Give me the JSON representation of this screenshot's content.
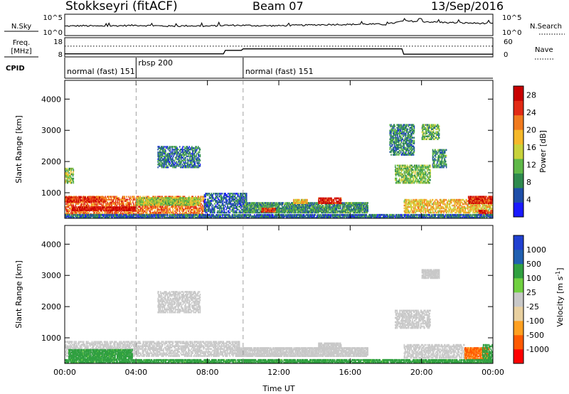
{
  "header": {
    "station": "Stokkseyri (fitACF)",
    "beam": "Beam 07",
    "date": "13/Sep/2016"
  },
  "colors": {
    "power_scale": [
      "#1a1aff",
      "#1e4ea8",
      "#2e8a4e",
      "#5fb848",
      "#c8d23a",
      "#f5b82a",
      "#f07a1e",
      "#e22a14",
      "#c80000"
    ],
    "velocity_scale": [
      "#ff0000",
      "#ff5a00",
      "#ffa020",
      "#e8d0a0",
      "#c8c8c8",
      "#70d040",
      "#30a040",
      "#2060b0",
      "#2040d0"
    ],
    "ground_scatter": "#c8c8c8"
  },
  "chart_data": [
    {
      "type": "line",
      "panel": "noise",
      "labels_left": {
        "name": "N.Sky",
        "top_tick": "10^5",
        "bottom_tick": "10^0"
      },
      "labels_right": {
        "name": "N.Search",
        "top_tick": "10^5",
        "bottom_tick": "10^0"
      },
      "x": [
        0,
        1,
        2,
        3,
        4,
        5,
        6,
        7,
        8,
        9,
        10,
        11,
        12,
        13,
        14,
        15,
        16,
        17,
        18,
        19,
        20,
        21,
        22,
        23,
        24
      ],
      "series": [
        {
          "style": "solid",
          "values": [
            2.2,
            2.3,
            2.2,
            2.3,
            2.4,
            2.3,
            2.2,
            2.3,
            2.2,
            2.4,
            2.4,
            2.3,
            2.3,
            2.4,
            2.5,
            2.6,
            2.6,
            2.7,
            2.6,
            3.4,
            3.3,
            3.1,
            3.0,
            2.9,
            2.8
          ]
        }
      ]
    },
    {
      "type": "line",
      "panel": "frequency",
      "labels_left": {
        "name_top": "Freq.",
        "name_bottom": "[MHz]",
        "top_tick": "18",
        "bottom_tick": "8"
      },
      "labels_right": {
        "name": "Nave",
        "top_tick": "60",
        "bottom_tick": "0"
      },
      "x": [
        0,
        1,
        2,
        3,
        4,
        5,
        6,
        7,
        8,
        8.9,
        9.0,
        9.9,
        10.0,
        11,
        12,
        13,
        14,
        15,
        16,
        17,
        18,
        18.9,
        19.0,
        20,
        21,
        22,
        23,
        24
      ],
      "series": [
        {
          "style": "solid",
          "values": [
            9.6,
            9.6,
            9.6,
            9.6,
            9.6,
            9.6,
            9.6,
            9.6,
            9.6,
            9.6,
            11.4,
            11.4,
            12.2,
            12.2,
            12.2,
            12.2,
            12.2,
            12.2,
            12.2,
            12.2,
            12.2,
            12.2,
            9.4,
            9.4,
            9.4,
            9.4,
            9.4,
            9.4
          ]
        },
        {
          "style": "dotted",
          "values": [
            13.6,
            13.6,
            13.6,
            13.6,
            13.6,
            13.6,
            13.6,
            13.6,
            13.6,
            13.6,
            13.6,
            13.6,
            13.6,
            13.6,
            13.6,
            13.6,
            13.6,
            13.6,
            13.6,
            13.6,
            13.6,
            13.6,
            13.6,
            13.6,
            13.6,
            13.6,
            13.6,
            13.6
          ]
        }
      ]
    },
    {
      "type": "table",
      "panel": "cpid",
      "label": "CPID",
      "segments": [
        {
          "start": 0,
          "end": 4.0,
          "text": "normal (fast) 151"
        },
        {
          "start": 4.0,
          "end": 10.0,
          "text": "rbsp 200"
        },
        {
          "start": 10.0,
          "end": 24,
          "text": "normal (fast) 151"
        }
      ]
    },
    {
      "type": "heatmap",
      "panel": "power",
      "ylabel": "Slant Range [km]",
      "xlim": [
        0,
        24
      ],
      "ylim": [
        180,
        4600
      ],
      "yticks": [
        1000,
        2000,
        3000,
        4000
      ],
      "colorbar": {
        "label": "Power [dB]",
        "ticks": [
          "4",
          "8",
          "12",
          "16",
          "20",
          "24",
          "28"
        ],
        "range": [
          0,
          30
        ]
      },
      "regions": [
        {
          "t0": 0.0,
          "t1": 7.8,
          "r0": 300,
          "r1": 900,
          "value": 22
        },
        {
          "t0": 0.4,
          "t1": 4.0,
          "r0": 420,
          "r1": 560,
          "value": 28
        },
        {
          "t0": 0.0,
          "t1": 2.2,
          "r0": 700,
          "r1": 880,
          "value": 26
        },
        {
          "t0": 4.0,
          "t1": 7.6,
          "r0": 600,
          "r1": 860,
          "value": 14
        },
        {
          "t0": 7.8,
          "t1": 10.2,
          "r0": 350,
          "r1": 1000,
          "value": 6
        },
        {
          "t0": 10.0,
          "t1": 17.0,
          "r0": 350,
          "r1": 700,
          "value": 9
        },
        {
          "t0": 14.2,
          "t1": 15.5,
          "r0": 650,
          "r1": 850,
          "value": 27
        },
        {
          "t0": 12.8,
          "t1": 13.6,
          "r0": 650,
          "r1": 800,
          "value": 18
        },
        {
          "t0": 11.0,
          "t1": 11.8,
          "r0": 380,
          "r1": 520,
          "value": 25
        },
        {
          "t0": 5.2,
          "t1": 7.6,
          "r0": 1800,
          "r1": 2500,
          "value": 7
        },
        {
          "t0": 0.0,
          "t1": 0.5,
          "r0": 1300,
          "r1": 1800,
          "value": 13
        },
        {
          "t0": 18.5,
          "t1": 20.5,
          "r0": 1300,
          "r1": 1900,
          "value": 12
        },
        {
          "t0": 18.2,
          "t1": 19.6,
          "r0": 2200,
          "r1": 3200,
          "value": 8
        },
        {
          "t0": 20.0,
          "t1": 21.0,
          "r0": 2700,
          "r1": 3200,
          "value": 11
        },
        {
          "t0": 20.6,
          "t1": 21.4,
          "r0": 1800,
          "r1": 2400,
          "value": 9
        },
        {
          "t0": 19.0,
          "t1": 24.0,
          "r0": 350,
          "r1": 800,
          "value": 18
        },
        {
          "t0": 22.6,
          "t1": 24.0,
          "r0": 650,
          "r1": 900,
          "value": 26
        },
        {
          "t0": 23.2,
          "t1": 24.0,
          "r0": 300,
          "r1": 450,
          "value": 26
        },
        {
          "t0": 0.0,
          "t1": 24.0,
          "r0": 180,
          "r1": 320,
          "value": 6
        }
      ]
    },
    {
      "type": "heatmap",
      "panel": "velocity",
      "ylabel": "Slant Range [km]",
      "xlabel": "Time UT",
      "xlim": [
        0,
        24
      ],
      "ylim": [
        180,
        4600
      ],
      "xticks": [
        "00:00",
        "04:00",
        "08:00",
        "12:00",
        "16:00",
        "20:00",
        "00:00"
      ],
      "yticks": [
        1000,
        2000,
        3000,
        4000
      ],
      "colorbar": {
        "label": "Velocity [m s^-1]",
        "ticks": [
          "1000",
          "500",
          "100",
          "25",
          "-25",
          "-100",
          "-500",
          "-1000"
        ]
      },
      "regions": [
        {
          "t0": 0.0,
          "t1": 9.8,
          "r0": 400,
          "r1": 900,
          "value": "gs"
        },
        {
          "t0": 0.2,
          "t1": 3.8,
          "r0": 300,
          "r1": 640,
          "value": 160
        },
        {
          "t0": 9.6,
          "t1": 17.0,
          "r0": 400,
          "r1": 700,
          "value": "gs"
        },
        {
          "t0": 14.2,
          "t1": 15.5,
          "r0": 650,
          "r1": 850,
          "value": "gs"
        },
        {
          "t0": 5.2,
          "t1": 7.6,
          "r0": 1800,
          "r1": 2500,
          "value": "gs"
        },
        {
          "t0": 18.5,
          "t1": 20.5,
          "r0": 1300,
          "r1": 1900,
          "value": "gs"
        },
        {
          "t0": 20.0,
          "t1": 21.0,
          "r0": 2900,
          "r1": 3200,
          "value": "gs"
        },
        {
          "t0": 19.0,
          "t1": 22.4,
          "r0": 350,
          "r1": 800,
          "value": "gs"
        },
        {
          "t0": 22.4,
          "t1": 23.8,
          "r0": 300,
          "r1": 700,
          "value": -600
        },
        {
          "t0": 23.4,
          "t1": 24.0,
          "r0": 300,
          "r1": 800,
          "value": 160
        },
        {
          "t0": 0.0,
          "t1": 24.0,
          "r0": 180,
          "r1": 320,
          "value": 160
        }
      ]
    }
  ]
}
